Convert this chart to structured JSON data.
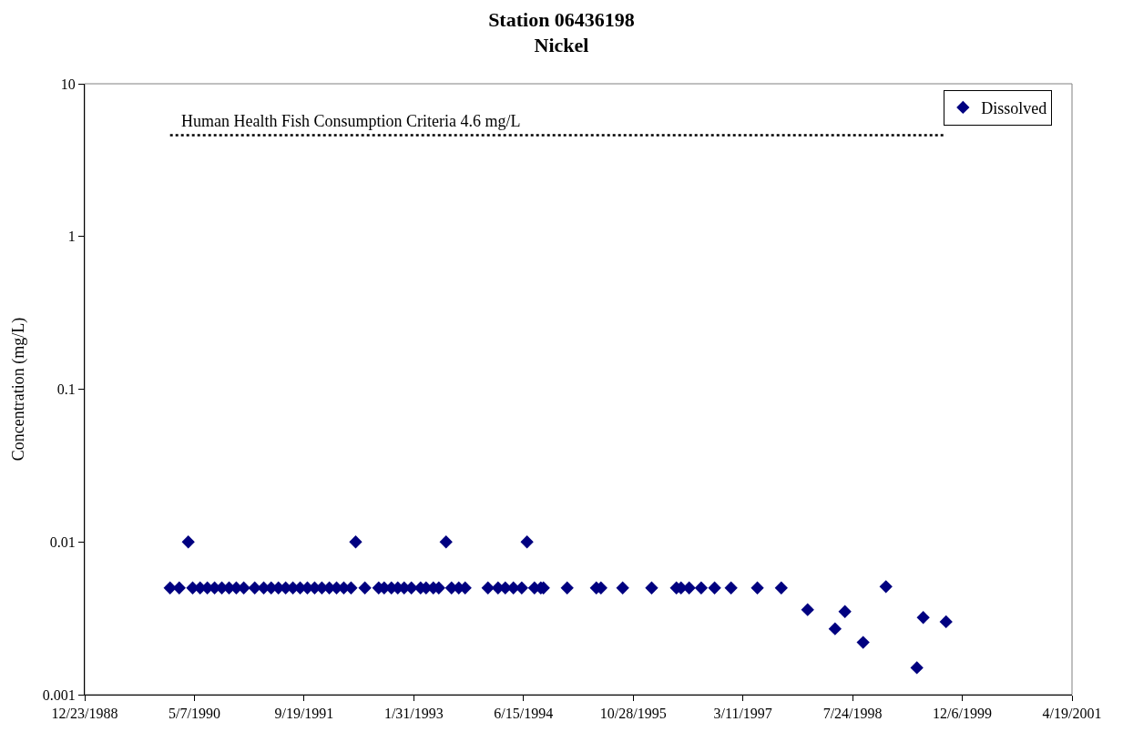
{
  "chart_data": {
    "type": "scatter",
    "title": "Station 06436198",
    "subtitle": "Nickel",
    "ylabel": "Concentration (mg/L)",
    "log": "y",
    "grid": false,
    "legend": "top right",
    "marker": "diamond",
    "xlim": [
      "1988-12-23",
      "2001-04-19"
    ],
    "xticks": [
      {
        "value": "1988-12-23",
        "label": "12/23/1988"
      },
      {
        "value": "1990-05-07",
        "label": "5/7/1990"
      },
      {
        "value": "1991-09-19",
        "label": "9/19/1991"
      },
      {
        "value": "1993-01-31",
        "label": "1/31/1993"
      },
      {
        "value": "1994-06-15",
        "label": "6/15/1994"
      },
      {
        "value": "1995-10-28",
        "label": "10/28/1995"
      },
      {
        "value": "1997-03-11",
        "label": "3/11/1997"
      },
      {
        "value": "1998-07-24",
        "label": "7/24/1998"
      },
      {
        "value": "1999-12-06",
        "label": "12/6/1999"
      },
      {
        "value": "2001-04-19",
        "label": "4/19/2001"
      }
    ],
    "ylim": [
      0.001,
      10
    ],
    "yticks": [
      0.001,
      0.01,
      0.1,
      1,
      10
    ],
    "ref_lines": [
      {
        "axis": "y",
        "value": 4.6,
        "label": "Human Health Fish Consumption Criteria 4.6 mg/L",
        "line_style": "dotted",
        "color": "#000000"
      }
    ],
    "series": [
      {
        "name": "Dissolved",
        "color": "#000080",
        "x": [
          "1990-01-16",
          "1990-02-27",
          "1990-04-09",
          "1990-04-29",
          "1990-06-02",
          "1990-07-05",
          "1990-08-07",
          "1990-09-09",
          "1990-10-12",
          "1990-11-14",
          "1990-12-18",
          "1991-02-06",
          "1991-03-19",
          "1991-04-22",
          "1991-05-25",
          "1991-06-27",
          "1991-07-30",
          "1991-09-01",
          "1991-10-04",
          "1991-11-06",
          "1991-12-09",
          "1992-01-12",
          "1992-02-14",
          "1992-03-18",
          "1992-04-20",
          "1992-05-11",
          "1992-06-22",
          "1992-08-24",
          "1992-09-18",
          "1992-10-21",
          "1992-11-19",
          "1992-12-18",
          "1993-01-20",
          "1993-03-03",
          "1993-03-28",
          "1993-04-30",
          "1993-05-25",
          "1993-06-27",
          "1993-07-22",
          "1993-08-24",
          "1993-09-22",
          "1994-01-04",
          "1994-02-19",
          "1994-03-24",
          "1994-04-30",
          "1994-06-07",
          "1994-07-01",
          "1994-08-04",
          "1994-09-02",
          "1994-09-14",
          "1994-12-31",
          "1995-05-13",
          "1995-06-03",
          "1995-09-10",
          "1996-01-20",
          "1996-05-12",
          "1996-06-02",
          "1996-07-09",
          "1996-09-02",
          "1996-11-02",
          "1997-01-16",
          "1997-05-16",
          "1997-09-02",
          "1997-12-31",
          "1998-05-05",
          "1998-06-19",
          "1998-09-10",
          "1998-12-23",
          "1999-05-13",
          "1999-06-11",
          "1999-09-23"
        ],
        "values": [
          0.005,
          0.005,
          0.01,
          0.005,
          0.005,
          0.005,
          0.005,
          0.005,
          0.005,
          0.005,
          0.005,
          0.005,
          0.005,
          0.005,
          0.005,
          0.005,
          0.005,
          0.005,
          0.005,
          0.005,
          0.005,
          0.005,
          0.005,
          0.005,
          0.005,
          0.01,
          0.005,
          0.005,
          0.005,
          0.005,
          0.005,
          0.005,
          0.005,
          0.005,
          0.005,
          0.005,
          0.005,
          0.01,
          0.005,
          0.005,
          0.005,
          0.005,
          0.005,
          0.005,
          0.005,
          0.005,
          0.01,
          0.005,
          0.005,
          0.005,
          0.005,
          0.005,
          0.005,
          0.005,
          0.005,
          0.005,
          0.005,
          0.005,
          0.005,
          0.005,
          0.005,
          0.005,
          0.005,
          0.0036,
          0.0027,
          0.0035,
          0.0022,
          0.0051,
          0.0015,
          0.0032,
          0.003
        ]
      }
    ]
  }
}
